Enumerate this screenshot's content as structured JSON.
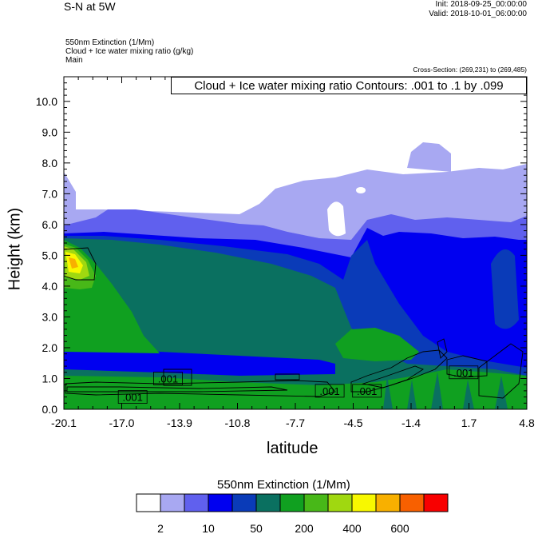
{
  "header": {
    "title": "S-N at 5W",
    "init": "Init: 2018-09-25_00:00:00",
    "valid": "Valid: 2018-10-01_06:00:00",
    "field1": "550nm Extinction   (1/Mm)",
    "field2": "Cloud + Ice water mixing ratio   (g/kg)",
    "field3": "Main",
    "cross_section": "Cross-Section: (269,231) to (269,485)",
    "contour_title": "Cloud + Ice water mixing ratio Contours: .001 to .1 by .099"
  },
  "chart_data": {
    "type": "heatmap",
    "xlabel": "latitude",
    "ylabel": "Height (km)",
    "xlim": [
      -20.1,
      4.8
    ],
    "ylim": [
      0,
      10.8
    ],
    "x_ticks": [
      "-20.1",
      "-17.0",
      "-13.9",
      "-10.8",
      "-7.7",
      "-4.5",
      "-1.4",
      "1.7",
      "4.8"
    ],
    "y_ticks": [
      "0.0",
      "1.0",
      "2.0",
      "3.0",
      "4.0",
      "5.0",
      "6.0",
      "7.0",
      "8.0",
      "9.0",
      "10.0"
    ],
    "colorbar": {
      "title": "550nm Extinction  (1/Mm)",
      "colors": [
        "#ffffff",
        "#a8a8f2",
        "#6060ee",
        "#0000f0",
        "#0a3bb8",
        "#0a7060",
        "#10a020",
        "#48b818",
        "#a0d810",
        "#f8f800",
        "#f8b000",
        "#f86000",
        "#f80000"
      ],
      "labels": [
        "2",
        "10",
        "50",
        "200",
        "400",
        "600"
      ]
    },
    "contour_labels": [
      {
        "text": ".001",
        "lat": -14.5,
        "h": 1.0
      },
      {
        "text": ".001",
        "lat": -16.4,
        "h": 0.4
      },
      {
        "text": ".001",
        "lat": -5.8,
        "h": 0.6
      },
      {
        "text": ".001",
        "lat": -3.8,
        "h": 0.6
      },
      {
        "text": ".001",
        "lat": 1.4,
        "h": 1.2
      }
    ]
  }
}
